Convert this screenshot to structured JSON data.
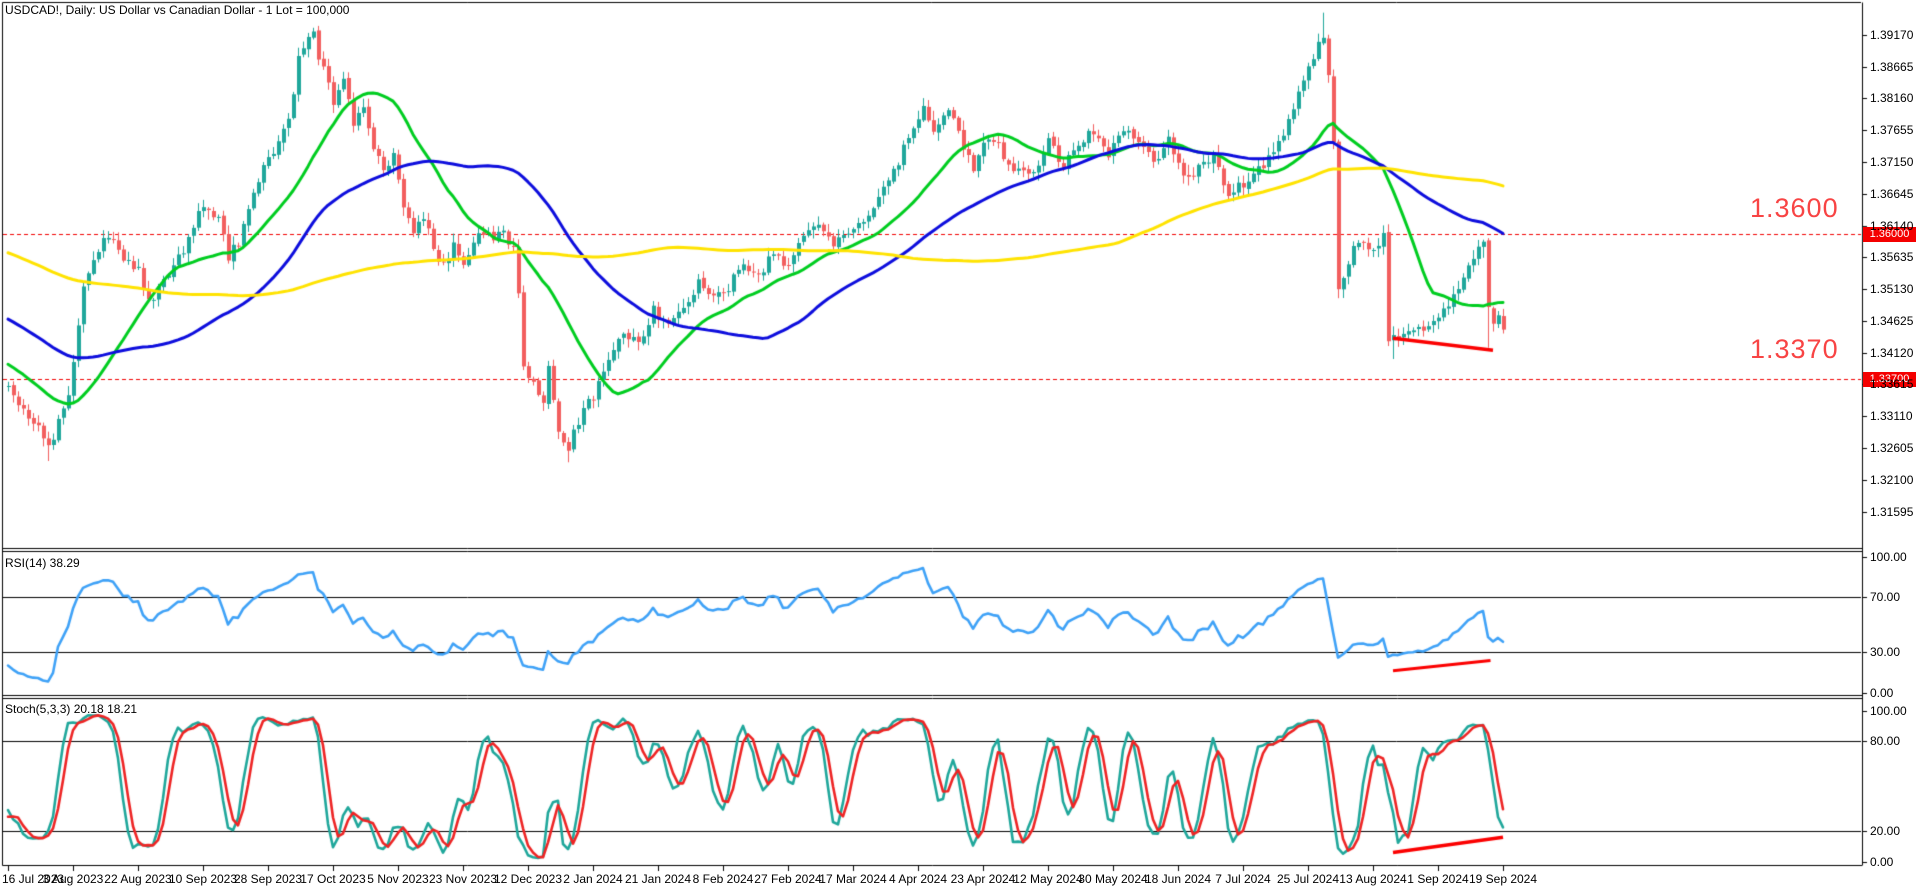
{
  "window": {
    "title": "USDCAD!, Daily: US Dollar vs Canadian Dollar - 1 Lot = 100,000"
  },
  "levels": {
    "resistance": {
      "price": 1.36,
      "label": "1.3600",
      "badge": "1.36000"
    },
    "support": {
      "price": 1.337,
      "label": "1.3370",
      "badge": "1.33700"
    }
  },
  "price_axis": {
    "ticks": [
      "1.39170",
      "1.38665",
      "1.38160",
      "1.37655",
      "1.37150",
      "1.36645",
      "1.36140",
      "1.35635",
      "1.35130",
      "1.34625",
      "1.34120",
      "1.33615",
      "1.33110",
      "1.32605",
      "1.32100",
      "1.31595"
    ]
  },
  "time_axis": {
    "labels": [
      "16 Jul 2023",
      "3 Aug 2023",
      "22 Aug 2023",
      "10 Sep 2023",
      "28 Sep 2023",
      "17 Oct 2023",
      "5 Nov 2023",
      "23 Nov 2023",
      "12 Dec 2023",
      "2 Jan 2024",
      "21 Jan 2024",
      "8 Feb 2024",
      "27 Feb 2024",
      "17 Mar 2024",
      "4 Apr 2024",
      "23 Apr 2024",
      "12 May 2024",
      "30 May 2024",
      "18 Jun 2024",
      "7 Jul 2024",
      "25 Jul 2024",
      "13 Aug 2024",
      "1 Sep 2024",
      "19 Sep 2024"
    ]
  },
  "indicators": {
    "rsi": {
      "label": "RSI(14) 38.29",
      "period": 14,
      "value": 38.29,
      "axis_ticks": [
        "100.00",
        "70.00",
        "30.00",
        "0.00"
      ],
      "level_lines": [
        70,
        30
      ],
      "color": "#3fa2f7"
    },
    "stoch": {
      "label": "Stoch(5,3,3) 20.18 18.21",
      "k": 20.18,
      "d": 18.21,
      "axis_ticks": [
        "100.00",
        "80.00",
        "20.00",
        "0.00"
      ],
      "level_lines": [
        80,
        20
      ],
      "k_color": "#1fa79b",
      "d_color": "#ee2424"
    }
  },
  "chart_data": {
    "type": "candlestick",
    "symbol": "USDCAD!",
    "timeframe": "Daily",
    "bars": 300,
    "date_tick_step_bars": 13,
    "ylim": [
      1.3101,
      1.3967
    ],
    "horizontal_dashed_lines": [
      1.36,
      1.337
    ],
    "close_waypoints": [
      [
        0,
        1.3355
      ],
      [
        3,
        1.3318
      ],
      [
        6,
        1.3295
      ],
      [
        8,
        1.3262
      ],
      [
        10,
        1.33
      ],
      [
        12,
        1.334
      ],
      [
        15,
        1.352
      ],
      [
        18,
        1.358
      ],
      [
        20,
        1.36
      ],
      [
        22,
        1.3572
      ],
      [
        24,
        1.3558
      ],
      [
        26,
        1.3545
      ],
      [
        28,
        1.3495
      ],
      [
        30,
        1.3512
      ],
      [
        32,
        1.354
      ],
      [
        34,
        1.3562
      ],
      [
        36,
        1.3595
      ],
      [
        38,
        1.3628
      ],
      [
        40,
        1.3645
      ],
      [
        42,
        1.362
      ],
      [
        44,
        1.3565
      ],
      [
        46,
        1.359
      ],
      [
        48,
        1.364
      ],
      [
        50,
        1.3685
      ],
      [
        52,
        1.372
      ],
      [
        54,
        1.3752
      ],
      [
        56,
        1.3775
      ],
      [
        58,
        1.388
      ],
      [
        60,
        1.3905
      ],
      [
        61,
        1.3915
      ],
      [
        63,
        1.3858
      ],
      [
        65,
        1.3808
      ],
      [
        67,
        1.3838
      ],
      [
        69,
        1.3778
      ],
      [
        71,
        1.3808
      ],
      [
        73,
        1.3742
      ],
      [
        75,
        1.3695
      ],
      [
        77,
        1.3728
      ],
      [
        79,
        1.3642
      ],
      [
        81,
        1.3602
      ],
      [
        83,
        1.3632
      ],
      [
        85,
        1.3572
      ],
      [
        87,
        1.3548
      ],
      [
        89,
        1.3585
      ],
      [
        91,
        1.3558
      ],
      [
        93,
        1.3582
      ],
      [
        95,
        1.3605
      ],
      [
        97,
        1.3592
      ],
      [
        99,
        1.36
      ],
      [
        101,
        1.3578
      ],
      [
        102,
        1.3515
      ],
      [
        103,
        1.3395
      ],
      [
        105,
        1.336
      ],
      [
        107,
        1.3338
      ],
      [
        108,
        1.339
      ],
      [
        110,
        1.329
      ],
      [
        112,
        1.3262
      ],
      [
        114,
        1.3305
      ],
      [
        117,
        1.3345
      ],
      [
        120,
        1.3408
      ],
      [
        123,
        1.3448
      ],
      [
        126,
        1.3422
      ],
      [
        129,
        1.3482
      ],
      [
        132,
        1.3452
      ],
      [
        135,
        1.3488
      ],
      [
        138,
        1.3525
      ],
      [
        141,
        1.3495
      ],
      [
        144,
        1.3515
      ],
      [
        147,
        1.3558
      ],
      [
        150,
        1.3528
      ],
      [
        153,
        1.3575
      ],
      [
        156,
        1.3548
      ],
      [
        159,
        1.3592
      ],
      [
        162,
        1.3612
      ],
      [
        165,
        1.3578
      ],
      [
        168,
        1.3605
      ],
      [
        171,
        1.3628
      ],
      [
        174,
        1.3652
      ],
      [
        177,
        1.3698
      ],
      [
        180,
        1.3755
      ],
      [
        183,
        1.3808
      ],
      [
        185,
        1.3768
      ],
      [
        188,
        1.3795
      ],
      [
        191,
        1.3742
      ],
      [
        193,
        1.3708
      ],
      [
        196,
        1.3758
      ],
      [
        199,
        1.3728
      ],
      [
        202,
        1.3698
      ],
      [
        205,
        1.3692
      ],
      [
        208,
        1.3748
      ],
      [
        211,
        1.3712
      ],
      [
        214,
        1.3742
      ],
      [
        217,
        1.3762
      ],
      [
        220,
        1.3722
      ],
      [
        223,
        1.3768
      ],
      [
        226,
        1.3742
      ],
      [
        229,
        1.3712
      ],
      [
        232,
        1.3748
      ],
      [
        235,
        1.3688
      ],
      [
        238,
        1.3705
      ],
      [
        241,
        1.3722
      ],
      [
        244,
        1.3658
      ],
      [
        247,
        1.3682
      ],
      [
        250,
        1.3705
      ],
      [
        253,
        1.3728
      ],
      [
        256,
        1.3778
      ],
      [
        258,
        1.3818
      ],
      [
        260,
        1.3858
      ],
      [
        262,
        1.3898
      ],
      [
        263,
        1.3918
      ],
      [
        264,
        1.3855
      ],
      [
        265,
        1.3755
      ],
      [
        266,
        1.3518
      ],
      [
        268,
        1.3555
      ],
      [
        270,
        1.3595
      ],
      [
        272,
        1.3568
      ],
      [
        274,
        1.3585
      ],
      [
        275,
        1.3598
      ],
      [
        276,
        1.3435
      ],
      [
        278,
        1.3428
      ],
      [
        280,
        1.3448
      ],
      [
        282,
        1.3458
      ],
      [
        284,
        1.3452
      ],
      [
        286,
        1.3475
      ],
      [
        288,
        1.349
      ],
      [
        290,
        1.3505
      ],
      [
        292,
        1.3555
      ],
      [
        294,
        1.3582
      ],
      [
        295,
        1.3588
      ],
      [
        296,
        1.3482
      ],
      [
        297,
        1.3455
      ],
      [
        298,
        1.3468
      ],
      [
        299,
        1.3448
      ]
    ],
    "wick_extremes": {
      "8": {
        "low": 1.324
      },
      "61": {
        "high": 1.3928
      },
      "112": {
        "low": 1.3238
      },
      "263": {
        "high": 1.3952
      },
      "277": {
        "low": 1.3402
      },
      "296": {
        "low": 1.342
      }
    },
    "trendlines": {
      "main": [
        [
          277,
          1.3435
        ],
        [
          297,
          1.3416
        ]
      ],
      "rsi": [
        [
          277,
          16
        ],
        [
          296.5,
          23.5
        ]
      ],
      "stoch": [
        [
          277,
          6
        ],
        [
          299,
          16
        ]
      ]
    },
    "moving_averages": [
      {
        "name": "fast-ma",
        "color": "#00cd20"
      },
      {
        "name": "medium-ma",
        "color": "#0d0ddd"
      },
      {
        "name": "slow-ma",
        "color": "#ffe300"
      }
    ],
    "colors": {
      "candle_up": "#1fa79b",
      "candle_down": "#f25e5e",
      "dashed_level": "#f20000",
      "trendline": "#fb0000",
      "axis_text": "#000000",
      "big_level_text": "#f84444",
      "badge_bg": "#f40000"
    }
  }
}
